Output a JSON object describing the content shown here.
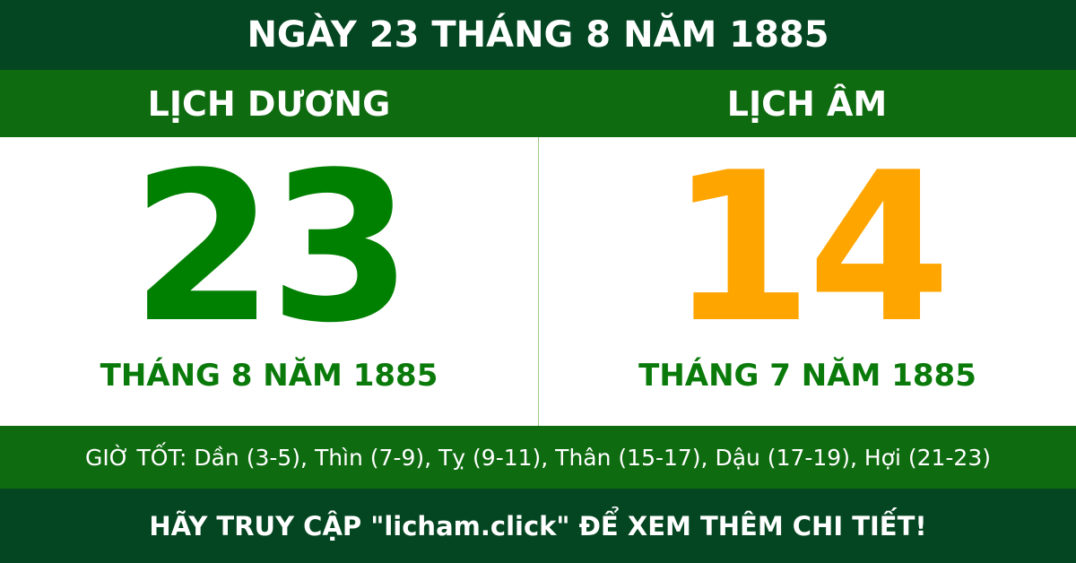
{
  "title": "NGÀY 23 THÁNG 8 NĂM 1885",
  "solar": {
    "heading": "LỊCH DƯƠNG",
    "day": "23",
    "month_year": "THÁNG 8 NĂM 1885"
  },
  "lunar": {
    "heading": "LỊCH ÂM",
    "day": "14",
    "month_year": "THÁNG 7 NĂM 1885"
  },
  "good_hours": "GIỜ TỐT: Dần (3-5), Thìn (7-9), Tỵ (9-11), Thân (15-17), Dậu (17-19), Hợi (21-23)",
  "footer": "HÃY TRUY CẬP \"licham.click\" ĐỂ XEM THÊM CHI TIẾT!",
  "colors": {
    "dark_green": "#044621",
    "green": "#0f6b10",
    "solar_day": "#008000",
    "lunar_day": "#ffa500"
  }
}
